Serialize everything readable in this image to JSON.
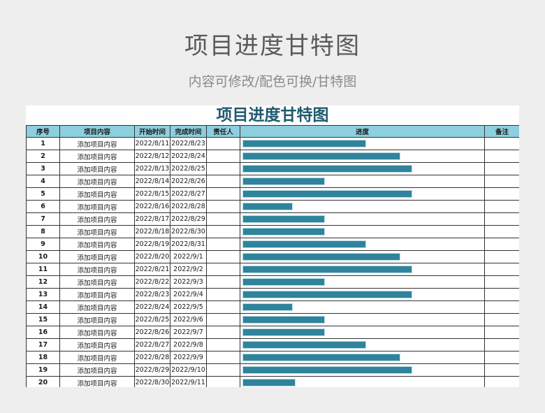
{
  "page": {
    "title": "项目进度甘特图",
    "subtitle": "内容可修改/配色可换/甘特图"
  },
  "sheet": {
    "title": "项目进度甘特图",
    "headers": {
      "no": "序号",
      "content": "项目内容",
      "start": "开始时间",
      "end": "完成时间",
      "owner": "责任人",
      "progress": "进度",
      "note": "备注"
    },
    "accent_color": "#2f849c",
    "header_color": "#8ecfdf",
    "rows": [
      {
        "no": "1",
        "content": "添加项目内容",
        "start": "2022/8/11",
        "end": "2022/8/23",
        "owner": "",
        "progress": 0.5,
        "note": ""
      },
      {
        "no": "2",
        "content": "添加项目内容",
        "start": "2022/8/12",
        "end": "2022/8/24",
        "owner": "",
        "progress": 0.64,
        "note": ""
      },
      {
        "no": "3",
        "content": "添加项目内容",
        "start": "2022/8/13",
        "end": "2022/8/25",
        "owner": "",
        "progress": 0.69,
        "note": ""
      },
      {
        "no": "4",
        "content": "添加项目内容",
        "start": "2022/8/14",
        "end": "2022/8/26",
        "owner": "",
        "progress": 0.33,
        "note": ""
      },
      {
        "no": "5",
        "content": "添加项目内容",
        "start": "2022/8/15",
        "end": "2022/8/27",
        "owner": "",
        "progress": 0.69,
        "note": ""
      },
      {
        "no": "6",
        "content": "添加项目内容",
        "start": "2022/8/16",
        "end": "2022/8/28",
        "owner": "",
        "progress": 0.2,
        "note": ""
      },
      {
        "no": "7",
        "content": "添加项目内容",
        "start": "2022/8/17",
        "end": "2022/8/29",
        "owner": "",
        "progress": 0.33,
        "note": ""
      },
      {
        "no": "8",
        "content": "添加项目内容",
        "start": "2022/8/18",
        "end": "2022/8/30",
        "owner": "",
        "progress": 0.33,
        "note": ""
      },
      {
        "no": "9",
        "content": "添加项目内容",
        "start": "2022/8/19",
        "end": "2022/8/31",
        "owner": "",
        "progress": 0.5,
        "note": ""
      },
      {
        "no": "10",
        "content": "添加项目内容",
        "start": "2022/8/20",
        "end": "2022/9/1",
        "owner": "",
        "progress": 0.64,
        "note": ""
      },
      {
        "no": "11",
        "content": "添加项目内容",
        "start": "2022/8/21",
        "end": "2022/9/2",
        "owner": "",
        "progress": 0.69,
        "note": ""
      },
      {
        "no": "12",
        "content": "添加项目内容",
        "start": "2022/8/22",
        "end": "2022/9/3",
        "owner": "",
        "progress": 0.33,
        "note": ""
      },
      {
        "no": "13",
        "content": "添加项目内容",
        "start": "2022/8/23",
        "end": "2022/9/4",
        "owner": "",
        "progress": 0.69,
        "note": ""
      },
      {
        "no": "14",
        "content": "添加项目内容",
        "start": "2022/8/24",
        "end": "2022/9/5",
        "owner": "",
        "progress": 0.2,
        "note": ""
      },
      {
        "no": "15",
        "content": "添加项目内容",
        "start": "2022/8/25",
        "end": "2022/9/6",
        "owner": "",
        "progress": 0.33,
        "note": ""
      },
      {
        "no": "16",
        "content": "添加项目内容",
        "start": "2022/8/26",
        "end": "2022/9/7",
        "owner": "",
        "progress": 0.33,
        "note": ""
      },
      {
        "no": "17",
        "content": "添加项目内容",
        "start": "2022/8/27",
        "end": "2022/9/8",
        "owner": "",
        "progress": 0.5,
        "note": ""
      },
      {
        "no": "18",
        "content": "添加项目内容",
        "start": "2022/8/28",
        "end": "2022/9/9",
        "owner": "",
        "progress": 0.64,
        "note": ""
      },
      {
        "no": "19",
        "content": "添加项目内容",
        "start": "2022/8/29",
        "end": "2022/9/10",
        "owner": "",
        "progress": 0.69,
        "note": ""
      },
      {
        "no": "20",
        "content": "添加项目内容",
        "start": "2022/8/30",
        "end": "2022/9/11",
        "owner": "",
        "progress": 0.21,
        "note": ""
      }
    ]
  }
}
